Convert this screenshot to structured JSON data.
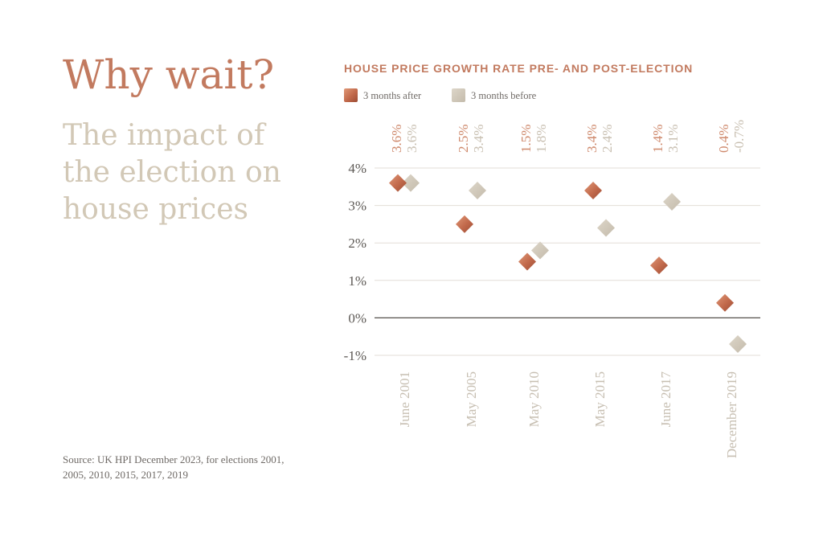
{
  "headline": "Why wait?",
  "subheadline": "The impact of the election on house prices",
  "source": "Source: UK HPI December 2023, for elections 2001, 2005, 2010, 2015, 2017, 2019",
  "colors": {
    "after": "#c1694b",
    "before": "#cfc7b8",
    "headline": "#c27a5f",
    "subheadline": "#d2c8b6"
  },
  "chart_data": {
    "type": "scatter",
    "title": "HOUSE PRICE GROWTH RATE PRE- AND POST-ELECTION",
    "xlabel": "",
    "ylabel": "",
    "ylim": [
      -1,
      4
    ],
    "yticks": [
      4,
      3,
      2,
      1,
      0,
      -1
    ],
    "ytick_labels": [
      "4%",
      "3%",
      "2%",
      "1%",
      "0%",
      "-1%"
    ],
    "categories": [
      "June 2001",
      "May 2005",
      "May 2010",
      "May 2015",
      "June 2017",
      "December 2019"
    ],
    "legend": [
      "3 months after",
      "3 months before"
    ],
    "legend_position": "top-left",
    "series": [
      {
        "name": "3 months after",
        "values": [
          3.6,
          2.5,
          1.5,
          3.4,
          1.4,
          0.4
        ],
        "labels": [
          "3.6%",
          "2.5%",
          "1.5%",
          "3.4%",
          "1.4%",
          "0.4%"
        ]
      },
      {
        "name": "3 months before",
        "values": [
          3.6,
          3.4,
          1.8,
          2.4,
          3.1,
          -0.7
        ],
        "labels": [
          "3.6%",
          "3.4%",
          "1.8%",
          "2.4%",
          "3.1%",
          "-0.7%"
        ]
      }
    ]
  }
}
